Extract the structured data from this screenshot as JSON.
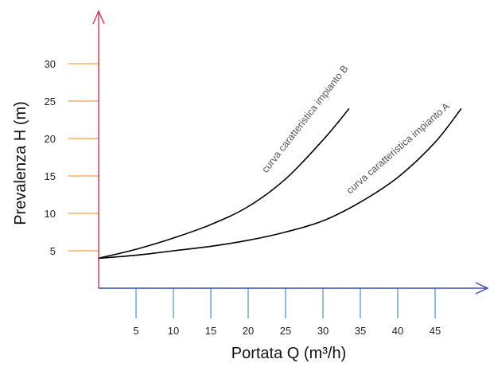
{
  "chart_data": {
    "type": "line",
    "title": "",
    "xlabel": "Portata Q (m³/h)",
    "ylabel": "Prevalenza H (m)",
    "xlim": [
      0,
      50
    ],
    "ylim": [
      0,
      30
    ],
    "x_ticks": [
      5,
      10,
      15,
      20,
      25,
      30,
      35,
      40,
      45
    ],
    "y_ticks": [
      5,
      10,
      15,
      20,
      25,
      30
    ],
    "x_tick_labels": [
      "5",
      "10",
      "15",
      "20",
      "25",
      "30",
      "35",
      "40",
      "45"
    ],
    "y_tick_labels": [
      "5",
      "10",
      "15",
      "20",
      "25",
      "30"
    ],
    "grid": false,
    "colors": {
      "x_axis": "#3b48b8",
      "y_axis": "#e0304a",
      "x_ticks": "#4a90d0",
      "y_ticks": "#f0a040",
      "curves": "#000000"
    },
    "series": [
      {
        "name": "curva caratteristica impianto B",
        "x": [
          0,
          5,
          10,
          15,
          20,
          25,
          30,
          33.5
        ],
        "y": [
          4,
          5.2,
          6.7,
          8.5,
          10.9,
          14.6,
          19.8,
          24
        ]
      },
      {
        "name": "curva caratteristica impianto A",
        "x": [
          0,
          5,
          10,
          15,
          20,
          25,
          30,
          35,
          40,
          45,
          48.5
        ],
        "y": [
          4,
          4.4,
          5,
          5.6,
          6.4,
          7.5,
          9,
          11.5,
          14.8,
          19.5,
          24
        ]
      }
    ]
  }
}
